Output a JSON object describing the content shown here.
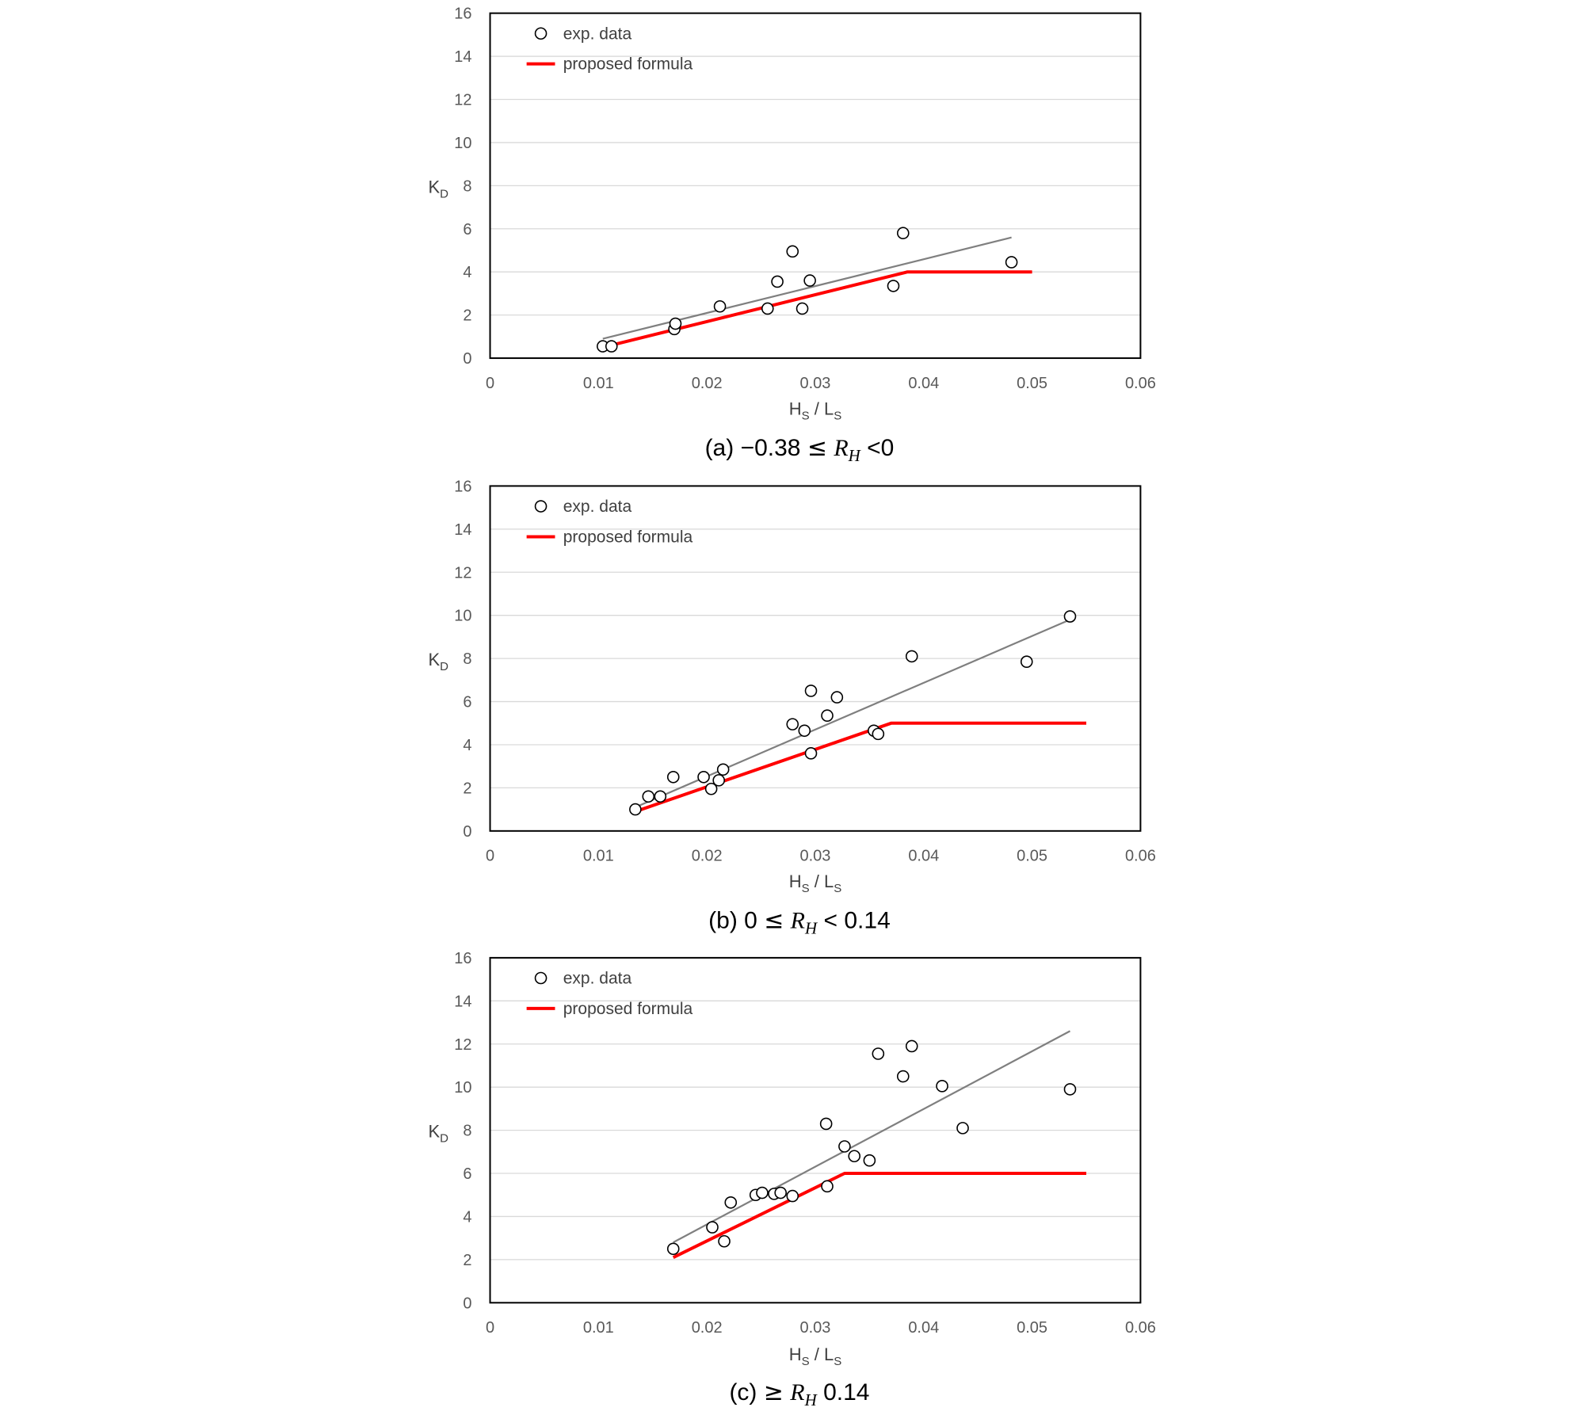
{
  "chart_data": [
    {
      "type": "scatter",
      "panel": "a",
      "caption_label": "(a) ",
      "caption_lower": "−0.38",
      "caption_relation": "≤",
      "caption_var": "R",
      "caption_sub": "H",
      "caption_upper": "<0",
      "xlabel_main_1": "H",
      "xlabel_sub_1": "S",
      "xlabel_sep": " / ",
      "xlabel_main_2": "L",
      "xlabel_sub_2": "S",
      "ylabel_main": "K",
      "ylabel_sub": "D",
      "xlim": [
        0,
        0.06
      ],
      "ylim": [
        0,
        16
      ],
      "x_ticks": [
        "0",
        "0.01",
        "0.02",
        "0.03",
        "0.04",
        "0.05",
        "0.06"
      ],
      "y_ticks": [
        "0",
        "2",
        "4",
        "6",
        "8",
        "10",
        "12",
        "14",
        "16"
      ],
      "grid": "horizontal",
      "legend_position": "top-left",
      "legend": [
        "exp. data",
        "proposed formula"
      ],
      "series": [
        {
          "name": "exp. data",
          "style": "open-circle",
          "points": [
            [
              0.0104,
              0.55
            ],
            [
              0.0112,
              0.55
            ],
            [
              0.017,
              1.35
            ],
            [
              0.0171,
              1.6
            ],
            [
              0.0212,
              2.4
            ],
            [
              0.0256,
              2.3
            ],
            [
              0.0265,
              3.55
            ],
            [
              0.0279,
              4.95
            ],
            [
              0.0288,
              2.3
            ],
            [
              0.0295,
              3.6
            ],
            [
              0.0372,
              3.35
            ],
            [
              0.0381,
              5.8
            ],
            [
              0.0481,
              4.45
            ]
          ]
        },
        {
          "name": "trend line",
          "style": "gray-line",
          "points": [
            [
              0.0104,
              0.9
            ],
            [
              0.0481,
              5.6
            ]
          ]
        },
        {
          "name": "proposed formula",
          "style": "red-line",
          "points": [
            [
              0.0104,
              0.5
            ],
            [
              0.0385,
              4.0
            ],
            [
              0.05,
              4.0
            ]
          ]
        }
      ]
    },
    {
      "type": "scatter",
      "panel": "b",
      "caption_label": "(b) ",
      "caption_lower": "0",
      "caption_relation": "≤",
      "caption_var": "R",
      "caption_sub": "H",
      "caption_upper": "< 0.14",
      "xlabel_main_1": "H",
      "xlabel_sub_1": "S",
      "xlabel_sep": " / ",
      "xlabel_main_2": "L",
      "xlabel_sub_2": "S",
      "ylabel_main": "K",
      "ylabel_sub": "D",
      "xlim": [
        0,
        0.06
      ],
      "ylim": [
        0,
        16
      ],
      "x_ticks": [
        "0",
        "0.01",
        "0.02",
        "0.03",
        "0.04",
        "0.05",
        "0.06"
      ],
      "y_ticks": [
        "0",
        "2",
        "4",
        "6",
        "8",
        "10",
        "12",
        "14",
        "16"
      ],
      "grid": "horizontal",
      "legend_position": "top-left",
      "legend": [
        "exp. data",
        "proposed formula"
      ],
      "series": [
        {
          "name": "exp. data",
          "style": "open-circle",
          "points": [
            [
              0.0134,
              1.0
            ],
            [
              0.0146,
              1.6
            ],
            [
              0.0157,
              1.6
            ],
            [
              0.0169,
              2.5
            ],
            [
              0.0197,
              2.5
            ],
            [
              0.0204,
              1.95
            ],
            [
              0.0211,
              2.35
            ],
            [
              0.0215,
              2.85
            ],
            [
              0.0279,
              4.95
            ],
            [
              0.029,
              4.65
            ],
            [
              0.0296,
              3.6
            ],
            [
              0.0296,
              6.5
            ],
            [
              0.0311,
              5.35
            ],
            [
              0.032,
              6.2
            ],
            [
              0.0354,
              4.65
            ],
            [
              0.0358,
              4.5
            ],
            [
              0.0389,
              8.1
            ],
            [
              0.0495,
              7.85
            ],
            [
              0.0535,
              9.95
            ]
          ]
        },
        {
          "name": "trend line",
          "style": "gray-line",
          "points": [
            [
              0.0134,
              1.1
            ],
            [
              0.0535,
              9.8
            ]
          ]
        },
        {
          "name": "proposed formula",
          "style": "red-line",
          "points": [
            [
              0.0134,
              0.9
            ],
            [
              0.037,
              5.0
            ],
            [
              0.055,
              5.0
            ]
          ]
        }
      ]
    },
    {
      "type": "scatter",
      "panel": "c",
      "caption_label": "(c) ",
      "caption_lower": "",
      "caption_relation": "≥",
      "caption_var": "R",
      "caption_sub": "H",
      "caption_upper": "0.14",
      "xlabel_main_1": "H",
      "xlabel_sub_1": "S",
      "xlabel_sep": " / ",
      "xlabel_main_2": "L",
      "xlabel_sub_2": "S",
      "ylabel_main": "K",
      "ylabel_sub": "D",
      "xlim": [
        0,
        0.06
      ],
      "ylim": [
        0,
        16
      ],
      "x_ticks": [
        "0",
        "0.01",
        "0.02",
        "0.03",
        "0.04",
        "0.05",
        "0.06"
      ],
      "y_ticks": [
        "0",
        "2",
        "4",
        "6",
        "8",
        "10",
        "12",
        "14",
        "16"
      ],
      "grid": "horizontal",
      "legend_position": "top-left",
      "legend": [
        "exp. data",
        "proposed formula"
      ],
      "series": [
        {
          "name": "exp. data",
          "style": "open-circle",
          "points": [
            [
              0.0169,
              2.5
            ],
            [
              0.0205,
              3.5
            ],
            [
              0.0216,
              2.85
            ],
            [
              0.0222,
              4.65
            ],
            [
              0.0245,
              5.0
            ],
            [
              0.0251,
              5.1
            ],
            [
              0.0262,
              5.05
            ],
            [
              0.0268,
              5.1
            ],
            [
              0.0279,
              4.95
            ],
            [
              0.031,
              8.3
            ],
            [
              0.0311,
              5.4
            ],
            [
              0.0327,
              7.25
            ],
            [
              0.0336,
              6.8
            ],
            [
              0.035,
              6.6
            ],
            [
              0.0358,
              11.55
            ],
            [
              0.0381,
              10.5
            ],
            [
              0.0389,
              11.9
            ],
            [
              0.0417,
              10.05
            ],
            [
              0.0436,
              8.1
            ],
            [
              0.0535,
              9.9
            ]
          ]
        },
        {
          "name": "trend line",
          "style": "gray-line",
          "points": [
            [
              0.0169,
              2.8
            ],
            [
              0.0535,
              12.6
            ]
          ]
        },
        {
          "name": "proposed formula",
          "style": "red-line",
          "points": [
            [
              0.0169,
              2.1
            ],
            [
              0.0327,
              6.0
            ],
            [
              0.055,
              6.0
            ]
          ]
        }
      ]
    }
  ]
}
